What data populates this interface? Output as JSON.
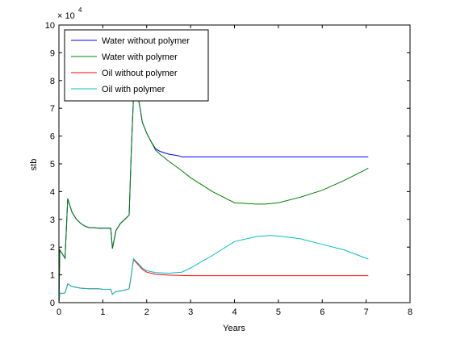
{
  "chart_data": {
    "type": "line",
    "title": "",
    "xlabel": "Years",
    "ylabel": "stb",
    "xlim": [
      0,
      8
    ],
    "ylim": [
      0,
      10
    ],
    "y_multiplier_label": "× 10",
    "y_multiplier_exponent": "4",
    "x_ticks": [
      0,
      1,
      2,
      3,
      4,
      5,
      6,
      7,
      8
    ],
    "y_ticks": [
      0,
      1,
      2,
      3,
      4,
      5,
      6,
      7,
      8,
      9,
      10
    ],
    "grid": false,
    "legend_position": "top-left",
    "series": [
      {
        "name": "Water without polymer",
        "color": "#0000ff",
        "x": [
          0,
          0.02,
          0.08,
          0.14,
          0.2,
          0.25,
          0.3,
          0.4,
          0.5,
          0.6,
          0.7,
          0.8,
          0.9,
          1.0,
          1.1,
          1.18,
          1.22,
          1.3,
          1.4,
          1.5,
          1.6,
          1.65,
          1.72,
          1.78,
          1.85,
          1.9,
          2.0,
          2.1,
          2.2,
          2.3,
          2.5,
          2.7,
          2.8,
          3.0,
          4.0,
          5.0,
          6.0,
          7.0,
          7.05
        ],
        "y": [
          0,
          1.9,
          1.75,
          1.6,
          3.75,
          3.5,
          3.25,
          3.0,
          2.85,
          2.75,
          2.7,
          2.7,
          2.68,
          2.68,
          2.68,
          2.68,
          1.95,
          2.6,
          2.85,
          3.0,
          3.15,
          5.5,
          8.2,
          7.6,
          7.0,
          6.5,
          6.1,
          5.8,
          5.55,
          5.45,
          5.35,
          5.3,
          5.25,
          5.25,
          5.25,
          5.25,
          5.25,
          5.25,
          5.25
        ]
      },
      {
        "name": "Water with polymer",
        "color": "#008000",
        "x": [
          0,
          0.02,
          0.08,
          0.14,
          0.2,
          0.25,
          0.3,
          0.4,
          0.5,
          0.6,
          0.7,
          0.8,
          0.9,
          1.0,
          1.1,
          1.18,
          1.22,
          1.3,
          1.4,
          1.5,
          1.6,
          1.65,
          1.72,
          1.78,
          1.85,
          1.9,
          2.0,
          2.1,
          2.2,
          2.3,
          2.5,
          2.8,
          3.0,
          3.5,
          4.0,
          4.5,
          4.7,
          5.0,
          5.5,
          6.0,
          6.5,
          7.0,
          7.05
        ],
        "y": [
          0,
          1.9,
          1.75,
          1.6,
          3.75,
          3.5,
          3.25,
          3.0,
          2.85,
          2.75,
          2.7,
          2.7,
          2.68,
          2.68,
          2.68,
          2.68,
          1.95,
          2.6,
          2.85,
          3.0,
          3.15,
          5.5,
          8.2,
          7.6,
          7.0,
          6.5,
          6.1,
          5.8,
          5.5,
          5.35,
          5.1,
          4.75,
          4.5,
          4.0,
          3.6,
          3.55,
          3.55,
          3.6,
          3.8,
          4.05,
          4.4,
          4.8,
          4.85
        ]
      },
      {
        "name": "Oil without polymer",
        "color": "#ff0000",
        "x": [
          0,
          0.02,
          0.08,
          0.14,
          0.2,
          0.3,
          0.5,
          0.7,
          0.9,
          1.0,
          1.1,
          1.18,
          1.22,
          1.3,
          1.4,
          1.5,
          1.6,
          1.65,
          1.7,
          1.8,
          1.9,
          2.0,
          2.2,
          2.5,
          3.0,
          4.0,
          5.0,
          6.0,
          7.0,
          7.05
        ],
        "y": [
          0,
          0.35,
          0.33,
          0.35,
          0.68,
          0.58,
          0.52,
          0.5,
          0.5,
          0.48,
          0.48,
          0.48,
          0.3,
          0.4,
          0.42,
          0.45,
          0.5,
          1.0,
          1.55,
          1.38,
          1.2,
          1.1,
          1.02,
          0.99,
          0.97,
          0.97,
          0.97,
          0.97,
          0.97,
          0.97
        ]
      },
      {
        "name": "Oil with polymer",
        "color": "#00bfbf",
        "x": [
          0,
          0.02,
          0.08,
          0.14,
          0.2,
          0.3,
          0.5,
          0.7,
          0.9,
          1.0,
          1.1,
          1.18,
          1.22,
          1.3,
          1.4,
          1.5,
          1.6,
          1.65,
          1.7,
          1.8,
          1.9,
          2.0,
          2.2,
          2.5,
          2.8,
          3.0,
          3.5,
          4.0,
          4.5,
          4.8,
          5.0,
          5.5,
          6.0,
          6.5,
          7.0,
          7.05
        ],
        "y": [
          0,
          0.35,
          0.33,
          0.35,
          0.68,
          0.58,
          0.52,
          0.5,
          0.5,
          0.48,
          0.48,
          0.48,
          0.3,
          0.4,
          0.42,
          0.45,
          0.5,
          1.0,
          1.58,
          1.42,
          1.25,
          1.15,
          1.08,
          1.06,
          1.1,
          1.25,
          1.7,
          2.2,
          2.38,
          2.42,
          2.4,
          2.3,
          2.1,
          1.9,
          1.6,
          1.57
        ]
      }
    ]
  }
}
